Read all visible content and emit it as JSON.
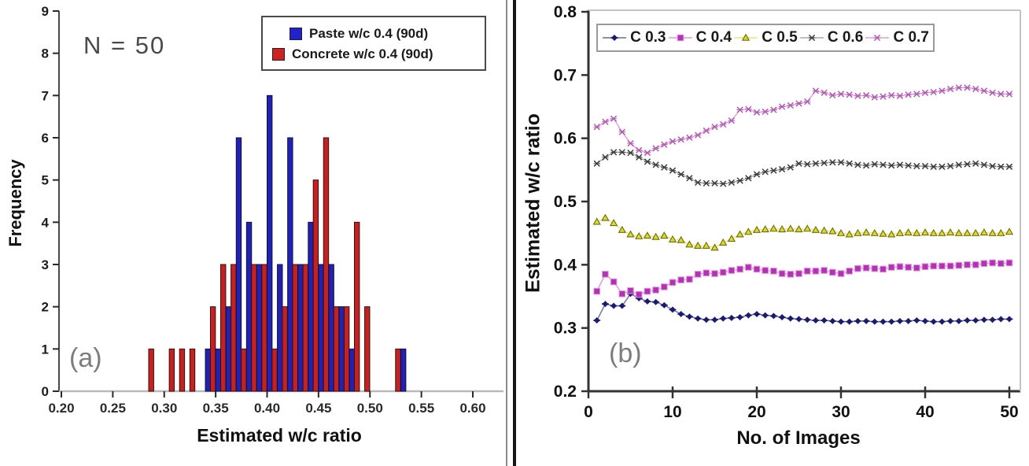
{
  "figure": {
    "panel_a_label": "(a)",
    "panel_b_label": "(b)",
    "annotation": "N = 50"
  },
  "chart_data": [
    {
      "type": "bar",
      "panel": "a",
      "annotation": "N = 50",
      "xlabel": "Estimated w/c ratio",
      "ylabel": "Frequency",
      "xlim": [
        0.2,
        0.6
      ],
      "ylim": [
        0,
        9
      ],
      "xtick_labels": [
        "0.20",
        "0.25",
        "0.30",
        "0.35",
        "0.40",
        "0.45",
        "0.50",
        "0.55",
        "0.60"
      ],
      "xtick_values": [
        0.2,
        0.25,
        0.3,
        0.35,
        0.4,
        0.45,
        0.5,
        0.55,
        0.6
      ],
      "ytick_values": [
        0,
        1,
        2,
        3,
        4,
        5,
        6,
        7,
        8,
        9
      ],
      "bin_width": 0.01,
      "bin_centers": [
        0.28,
        0.29,
        0.3,
        0.31,
        0.32,
        0.33,
        0.34,
        0.35,
        0.36,
        0.37,
        0.38,
        0.39,
        0.4,
        0.41,
        0.42,
        0.43,
        0.44,
        0.45,
        0.46,
        0.47,
        0.48,
        0.49,
        0.5,
        0.51,
        0.52,
        0.53
      ],
      "series": [
        {
          "name": "Paste w/c 0.4 (90d)",
          "color": "#2222b2",
          "stroke": "#10103a",
          "values": [
            0,
            0,
            0,
            0,
            0,
            0,
            1,
            1,
            2,
            6,
            4,
            3,
            7,
            3,
            6,
            3,
            4,
            3,
            3,
            2,
            1,
            0,
            0,
            0,
            0,
            1
          ]
        },
        {
          "name": "Concrete w/c 0.4 (90d)",
          "color": "#c42222",
          "stroke": "#3a0d0d",
          "values": [
            1,
            0,
            1,
            1,
            1,
            0,
            2,
            3,
            3,
            1,
            3,
            3,
            1,
            2,
            3,
            3,
            5,
            6,
            2,
            2,
            4,
            2,
            0,
            0,
            1,
            0
          ]
        }
      ],
      "legend_swatch_colors": [
        "#2222cc",
        "#cc2222"
      ]
    },
    {
      "type": "line",
      "panel": "b",
      "xlabel": "No. of Images",
      "ylabel": "Estimated w/c ratio",
      "xlim": [
        0,
        50
      ],
      "ylim": [
        0.2,
        0.8
      ],
      "xtick_values": [
        0,
        10,
        20,
        30,
        40,
        50
      ],
      "ytick_labels": [
        "0.2",
        "0.3",
        "0.4",
        "0.5",
        "0.6",
        "0.7",
        "0.8"
      ],
      "ytick_values": [
        0.2,
        0.3,
        0.4,
        0.5,
        0.6,
        0.7,
        0.8
      ],
      "x": [
        1,
        2,
        3,
        4,
        5,
        6,
        7,
        8,
        9,
        10,
        11,
        12,
        13,
        14,
        15,
        16,
        17,
        18,
        19,
        20,
        21,
        22,
        23,
        24,
        25,
        26,
        27,
        28,
        29,
        30,
        31,
        32,
        33,
        34,
        35,
        36,
        37,
        38,
        39,
        40,
        41,
        42,
        43,
        44,
        45,
        46,
        47,
        48,
        49,
        50
      ],
      "series": [
        {
          "name": "C 0.3",
          "marker": "diamond",
          "marker_color": "#1a1a70",
          "line_color": "#6a6aa8",
          "values": [
            0.312,
            0.338,
            0.335,
            0.335,
            0.354,
            0.347,
            0.342,
            0.341,
            0.336,
            0.329,
            0.322,
            0.318,
            0.315,
            0.313,
            0.313,
            0.315,
            0.316,
            0.317,
            0.32,
            0.322,
            0.32,
            0.319,
            0.317,
            0.315,
            0.314,
            0.313,
            0.312,
            0.312,
            0.311,
            0.31,
            0.31,
            0.311,
            0.311,
            0.31,
            0.31,
            0.31,
            0.311,
            0.311,
            0.312,
            0.311,
            0.31,
            0.31,
            0.311,
            0.311,
            0.312,
            0.312,
            0.313,
            0.313,
            0.314,
            0.314
          ]
        },
        {
          "name": "C 0.4",
          "marker": "square",
          "marker_color": "#b233b2",
          "line_color": "#e393e3",
          "values": [
            0.358,
            0.385,
            0.373,
            0.354,
            0.359,
            0.353,
            0.358,
            0.36,
            0.365,
            0.372,
            0.376,
            0.377,
            0.385,
            0.387,
            0.386,
            0.388,
            0.391,
            0.393,
            0.396,
            0.393,
            0.391,
            0.39,
            0.386,
            0.385,
            0.386,
            0.39,
            0.39,
            0.391,
            0.388,
            0.386,
            0.39,
            0.394,
            0.395,
            0.394,
            0.393,
            0.396,
            0.397,
            0.396,
            0.395,
            0.397,
            0.398,
            0.398,
            0.398,
            0.399,
            0.4,
            0.4,
            0.402,
            0.403,
            0.402,
            0.403
          ]
        },
        {
          "name": "C 0.5",
          "marker": "triangle",
          "marker_color": "#d8d838",
          "marker_stroke": "#6e6e00",
          "line_color": "#e6e67a",
          "values": [
            0.468,
            0.474,
            0.466,
            0.455,
            0.448,
            0.445,
            0.446,
            0.444,
            0.446,
            0.44,
            0.439,
            0.432,
            0.43,
            0.43,
            0.427,
            0.435,
            0.441,
            0.448,
            0.452,
            0.455,
            0.456,
            0.457,
            0.456,
            0.457,
            0.456,
            0.457,
            0.455,
            0.454,
            0.453,
            0.45,
            0.448,
            0.45,
            0.451,
            0.45,
            0.449,
            0.448,
            0.45,
            0.451,
            0.45,
            0.451,
            0.45,
            0.45,
            0.451,
            0.45,
            0.45,
            0.45,
            0.451,
            0.45,
            0.45,
            0.452
          ]
        },
        {
          "name": "C 0.6",
          "marker": "x",
          "marker_color": "#3d3d3d",
          "line_color": "#a8a8a8",
          "values": [
            0.56,
            0.57,
            0.578,
            0.578,
            0.577,
            0.57,
            0.563,
            0.558,
            0.554,
            0.549,
            0.543,
            0.537,
            0.53,
            0.529,
            0.529,
            0.528,
            0.53,
            0.533,
            0.537,
            0.543,
            0.547,
            0.549,
            0.551,
            0.554,
            0.56,
            0.559,
            0.56,
            0.561,
            0.562,
            0.562,
            0.56,
            0.558,
            0.557,
            0.559,
            0.558,
            0.557,
            0.558,
            0.557,
            0.556,
            0.556,
            0.555,
            0.555,
            0.556,
            0.558,
            0.559,
            0.56,
            0.558,
            0.556,
            0.555,
            0.555
          ]
        },
        {
          "name": "C 0.7",
          "marker": "x",
          "marker_color": "#b35ab3",
          "line_color": "#dfa0df",
          "values": [
            0.618,
            0.626,
            0.631,
            0.61,
            0.592,
            0.581,
            0.577,
            0.584,
            0.59,
            0.595,
            0.598,
            0.601,
            0.605,
            0.612,
            0.618,
            0.622,
            0.628,
            0.645,
            0.646,
            0.641,
            0.642,
            0.645,
            0.65,
            0.652,
            0.655,
            0.658,
            0.675,
            0.672,
            0.668,
            0.67,
            0.669,
            0.667,
            0.668,
            0.665,
            0.666,
            0.668,
            0.667,
            0.669,
            0.67,
            0.672,
            0.673,
            0.675,
            0.678,
            0.68,
            0.68,
            0.678,
            0.675,
            0.672,
            0.67,
            0.67
          ]
        }
      ]
    }
  ]
}
